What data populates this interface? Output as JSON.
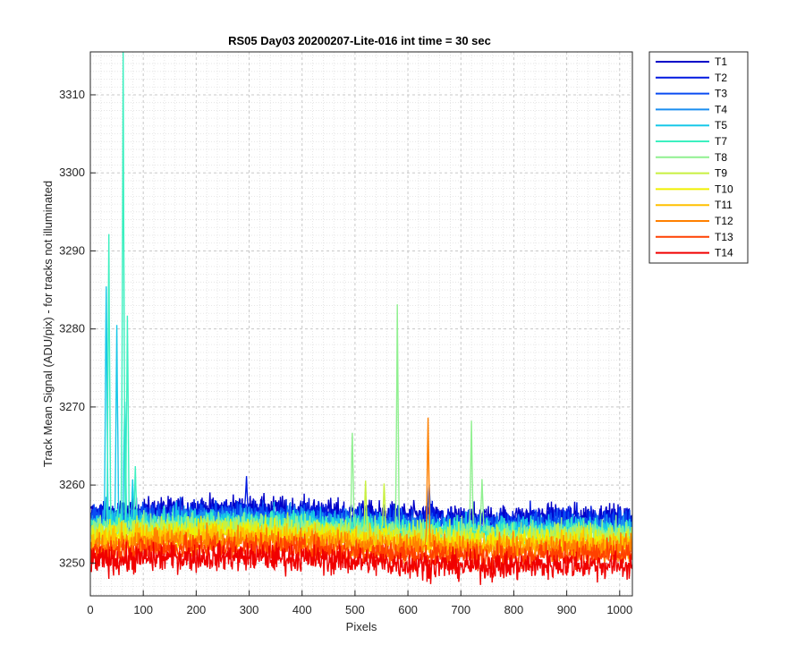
{
  "chart_data": {
    "type": "line",
    "title": "RS05 Day03 20200207-Lite-016 int time = 30 sec",
    "xlabel": "Pixels",
    "ylabel": "Track Mean Signal (ADU/pix) - for tracks not illuminated",
    "xlim": [
      0,
      1024
    ],
    "ylim": [
      3245.8,
      3315.5
    ],
    "x_ticks": [
      0,
      100,
      200,
      300,
      400,
      500,
      600,
      700,
      800,
      900,
      1000
    ],
    "y_ticks": [
      3250,
      3260,
      3270,
      3280,
      3290,
      3300,
      3310
    ],
    "grid": "major and minor, dotted",
    "legend_position": "outside right",
    "series": [
      {
        "name": "T1",
        "color": "#0000c8",
        "baseline": 3256.4,
        "noise": 1.2,
        "peaks": []
      },
      {
        "name": "T2",
        "color": "#0018e0",
        "baseline": 3256.0,
        "noise": 1.2,
        "peaks": [
          [
            295,
            3261.2
          ]
        ]
      },
      {
        "name": "T3",
        "color": "#0a4cf2",
        "baseline": 3255.6,
        "noise": 1.2,
        "peaks": [
          [
            640,
            3260.5
          ]
        ]
      },
      {
        "name": "T4",
        "color": "#1a8ef0",
        "baseline": 3255.1,
        "noise": 1.2,
        "peaks": [
          [
            30,
            3258.5
          ]
        ]
      },
      {
        "name": "T5",
        "color": "#18c8e8",
        "baseline": 3254.8,
        "noise": 1.2,
        "peaks": [
          [
            30,
            3289.5
          ],
          [
            50,
            3282.0
          ],
          [
            65,
            3273.0
          ],
          [
            80,
            3261.0
          ]
        ]
      },
      {
        "name": "T7",
        "color": "#3cf0c0",
        "baseline": 3254.5,
        "noise": 1.2,
        "peaks": [
          [
            35,
            3293.2
          ],
          [
            62,
            3315.5
          ],
          [
            70,
            3283.0
          ],
          [
            85,
            3262.5
          ]
        ]
      },
      {
        "name": "T8",
        "color": "#90f090",
        "baseline": 3254.2,
        "noise": 1.2,
        "peaks": [
          [
            495,
            3268.3
          ],
          [
            580,
            3284.5
          ],
          [
            720,
            3268.3
          ],
          [
            740,
            3261.0
          ]
        ]
      },
      {
        "name": "T9",
        "color": "#c8f040",
        "baseline": 3253.8,
        "noise": 1.2,
        "peaks": [
          [
            520,
            3260.8
          ],
          [
            555,
            3261.0
          ]
        ]
      },
      {
        "name": "T10",
        "color": "#f0f000",
        "baseline": 3253.2,
        "noise": 1.2,
        "peaks": []
      },
      {
        "name": "T11",
        "color": "#ffc000",
        "baseline": 3252.8,
        "noise": 1.2,
        "peaks": []
      },
      {
        "name": "T12",
        "color": "#ff8000",
        "baseline": 3252.2,
        "noise": 1.2,
        "peaks": [
          [
            638,
            3270.8
          ]
        ]
      },
      {
        "name": "T13",
        "color": "#ff4000",
        "baseline": 3251.5,
        "noise": 1.2,
        "peaks": []
      },
      {
        "name": "T14",
        "color": "#f00000",
        "baseline": 3250.2,
        "noise": 1.3,
        "peaks": []
      }
    ]
  }
}
